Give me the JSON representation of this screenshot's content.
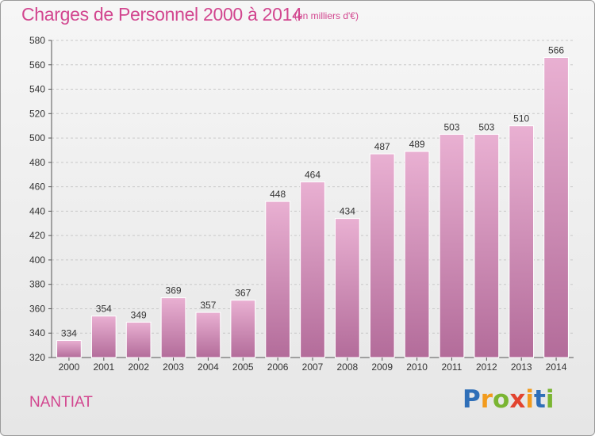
{
  "title": "Charges de Personnel 2000 à 2014",
  "subtitle": "(en milliers d'€)",
  "commune": "NANTIAT",
  "logo": {
    "letters": [
      "P",
      "r",
      "o",
      "x",
      "i",
      "t",
      "i"
    ],
    "colors": [
      "#2f6fb8",
      "#f29b1d",
      "#7ab532",
      "#e2442f",
      "#f29b1d",
      "#2f6fb8",
      "#7ab532"
    ]
  },
  "colors": {
    "accent": "#d2468f",
    "bar_top": "#e9b0d2",
    "bar_bottom": "#b36c9a"
  },
  "chart_data": {
    "type": "bar",
    "title": "Charges de Personnel 2000 à 2014",
    "subtitle": "(en milliers d'€)",
    "categories": [
      "2000",
      "2001",
      "2002",
      "2003",
      "2004",
      "2005",
      "2006",
      "2007",
      "2008",
      "2009",
      "2010",
      "2011",
      "2012",
      "2013",
      "2014"
    ],
    "values": [
      334,
      354,
      349,
      369,
      357,
      367,
      448,
      464,
      434,
      487,
      489,
      503,
      503,
      510,
      566
    ],
    "ylim": [
      320,
      580
    ],
    "yticks": [
      320,
      340,
      360,
      380,
      400,
      420,
      440,
      460,
      480,
      500,
      520,
      540,
      560,
      580
    ],
    "grid": "horizontal dashed",
    "data_labels": true
  }
}
